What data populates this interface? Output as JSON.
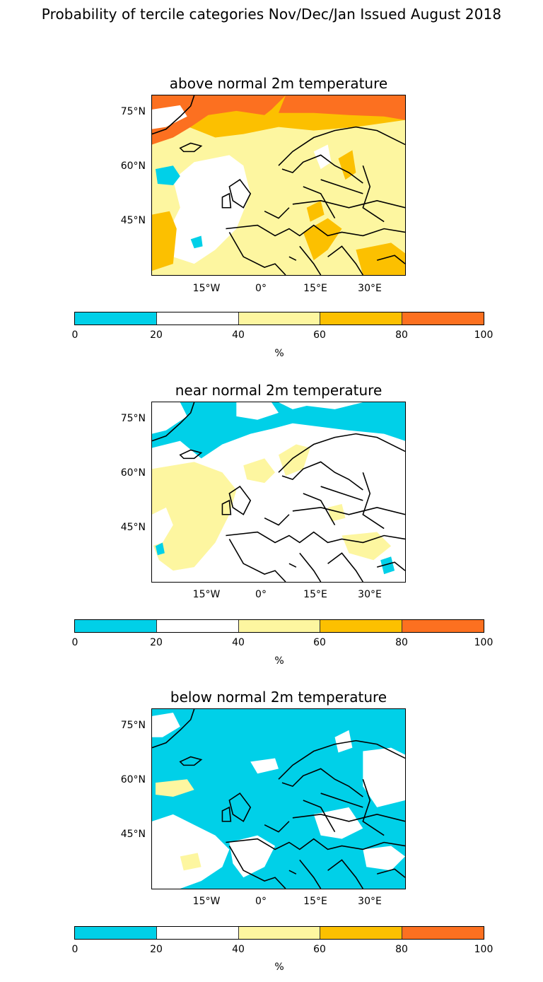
{
  "suptitle": "Probability of tercile categories Nov/Dec/Jan Issued August 2018",
  "panels": [
    {
      "title": "above normal 2m temperature"
    },
    {
      "title": "near normal 2m temperature"
    },
    {
      "title": "below normal 2m temperature"
    }
  ],
  "axes": {
    "lat_labels": [
      "75°N",
      "60°N",
      "45°N"
    ],
    "lon_labels": [
      "15°W",
      "0°",
      "15°E",
      "30°E"
    ]
  },
  "colorbar": {
    "ticks": [
      "0",
      "20",
      "40",
      "60",
      "80",
      "100"
    ],
    "unit": "%",
    "colors": [
      "#00d0e8",
      "#ffffff",
      "#fdf6a0",
      "#fcc000",
      "#fc7020"
    ]
  },
  "palette": {
    "cyan": "#00d0e8",
    "white": "#ffffff",
    "lightyellow": "#fdf6a0",
    "gold": "#fcc000",
    "orange": "#fc7020",
    "coast": "#000000"
  }
}
